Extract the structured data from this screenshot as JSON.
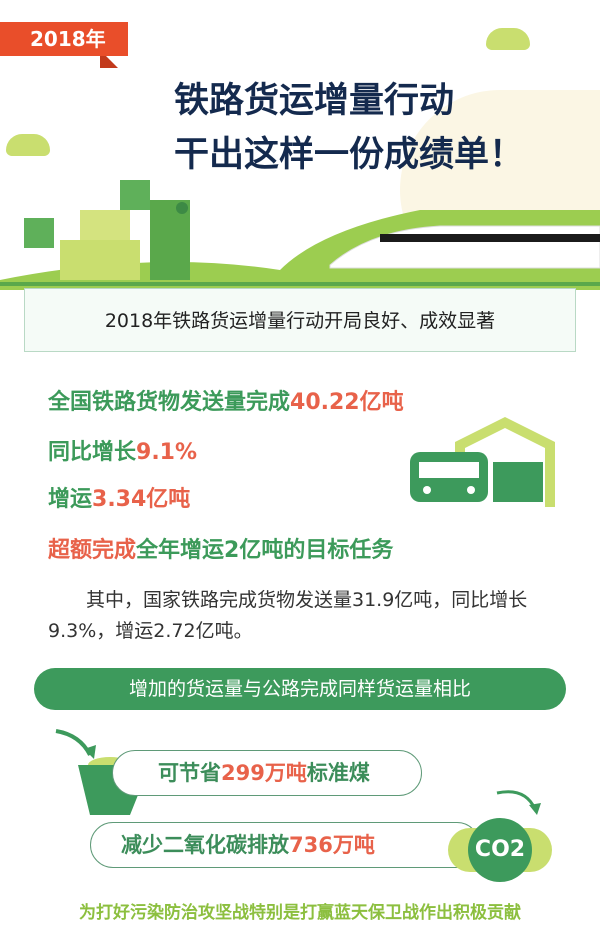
{
  "header": {
    "year_badge": "2018年",
    "title_line1": "铁路货运增量行动",
    "title_line2": "干出这样一份成绩单！"
  },
  "intro": "2018年铁路货运增量行动开局良好、成效显著",
  "stats": [
    {
      "label": "全国铁路货物发送量完成",
      "value": "40.22亿吨"
    },
    {
      "label": "同比增长",
      "value": "9.1%"
    },
    {
      "label": "增运",
      "value": "3.34亿吨"
    },
    {
      "highlight": "超额完成",
      "label": "全年增运2亿吨的目标任务"
    }
  ],
  "paragraph": "其中，国家铁路完成货物发送量31.9亿吨，同比增长9.3%，增运2.72亿吨。",
  "compare_banner": "增加的货运量与公路完成同样货运量相比",
  "coal": {
    "prefix": "可节省",
    "value": "299万吨",
    "suffix": "标准煤"
  },
  "carbon": {
    "prefix": "减少二氧化碳排放",
    "value": "736万吨",
    "icon_text": "CO2"
  },
  "footer": "为打好污染防治攻坚战特别是打赢蓝天保卫战作出积极贡献",
  "colors": {
    "green": "#3d9a5c",
    "red": "#e8624a",
    "navy": "#142a4e",
    "lime": "#8cbf3f",
    "badge": "#e94e2a"
  }
}
